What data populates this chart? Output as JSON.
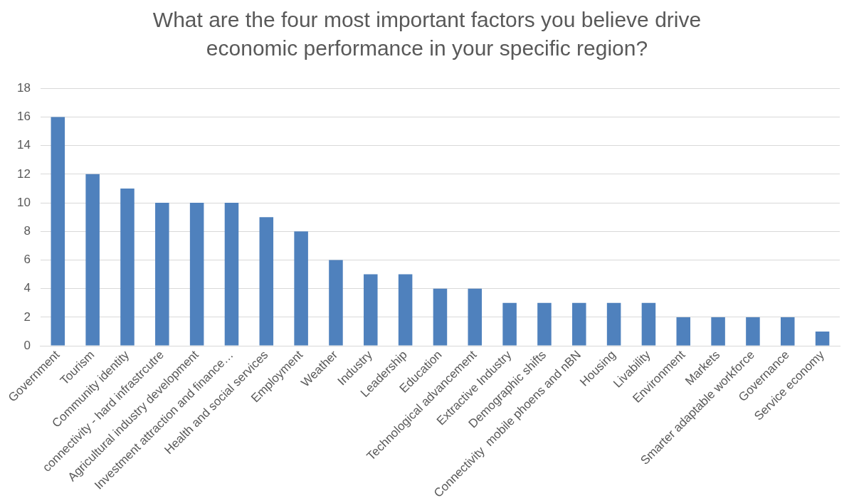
{
  "chart_data": {
    "type": "bar",
    "title": "What are the four most important factors you believe drive economic performance in your specific region?",
    "categories": [
      "Government",
      "Tourism",
      "Community identity",
      "connectivity - hard infrastrcutre",
      "Agricultural industry development",
      "Investment attraction and finance…",
      "Health and social services",
      "Employment",
      "Weather",
      "Industry",
      "Leadership",
      "Education",
      "Technological advancement",
      "Extractive Industry",
      "Demographic shifts",
      "Connectivity  mobile phoens and nBN",
      "Housing",
      "Livability",
      "Environment",
      "Markets",
      "Smarter adaptable workforce",
      "Governance",
      "Service economy"
    ],
    "values": [
      16,
      12,
      11,
      10,
      10,
      10,
      9,
      8,
      6,
      5,
      5,
      4,
      4,
      3,
      3,
      3,
      3,
      3,
      2,
      2,
      2,
      2,
      1
    ],
    "color": "#4f81bd",
    "ylim": [
      0,
      18
    ],
    "yticks": [
      0,
      2,
      4,
      6,
      8,
      10,
      12,
      14,
      16,
      18
    ],
    "grid": "y"
  }
}
